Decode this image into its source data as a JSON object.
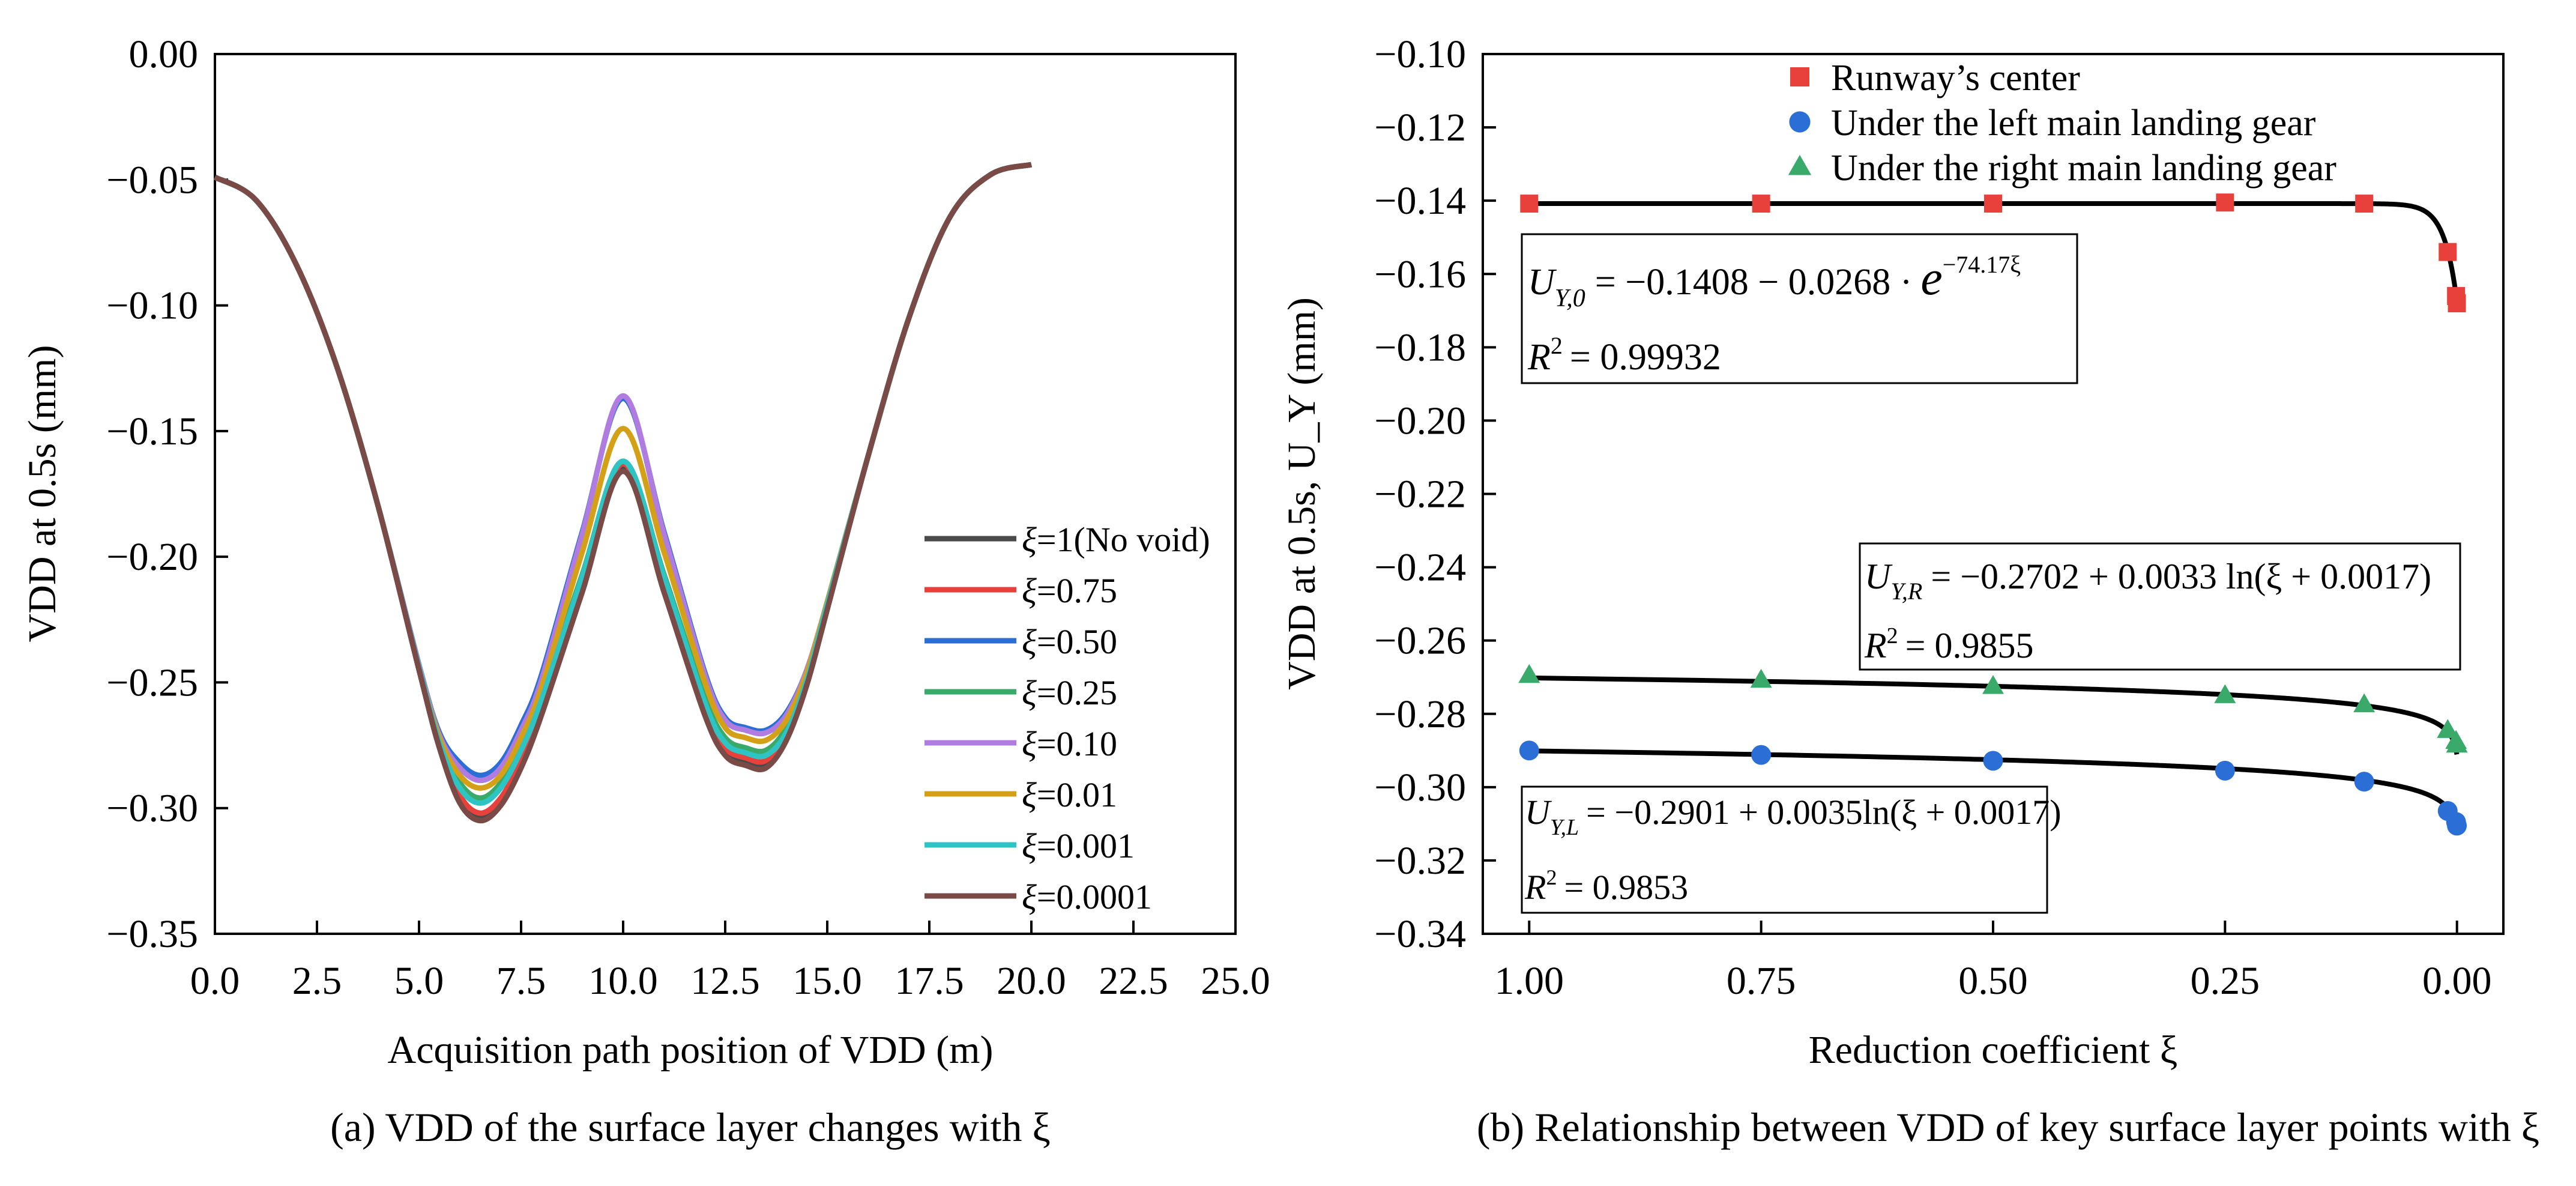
{
  "chart_data": [
    {
      "type": "line",
      "title": "",
      "caption": "(a) VDD of the surface layer changes with ξ",
      "xlabel": "Acquisition path position of VDD (m)",
      "ylabel": "VDD at 0.5s (mm)",
      "xlim": [
        0,
        25
      ],
      "ylim": [
        -0.35,
        0
      ],
      "xticks": [
        0,
        2.5,
        5,
        7.5,
        10,
        12.5,
        15,
        17.5,
        20,
        22.5,
        25
      ],
      "xtick_labels": [
        "0.0",
        "2.5",
        "5.0",
        "7.5",
        "10.0",
        "12.5",
        "15.0",
        "17.5",
        "20.0",
        "22.5",
        "25.0"
      ],
      "yticks": [
        0,
        -0.05,
        -0.1,
        -0.15,
        -0.2,
        -0.25,
        -0.3,
        -0.35
      ],
      "ytick_labels": [
        "0.00",
        "−0.05",
        "−0.10",
        "−0.15",
        "−0.20",
        "−0.25",
        "−0.30",
        "−0.35"
      ],
      "grid": false,
      "legend_position": "lower-right",
      "x": [
        0,
        1,
        2,
        3,
        4,
        5,
        5.5,
        6,
        6.5,
        7,
        7.5,
        8,
        9,
        10,
        11,
        12,
        12.5,
        13,
        13.5,
        14,
        14.5,
        15,
        16,
        17,
        18,
        19,
        20
      ],
      "series": [
        {
          "name": "ξ=1(No void)",
          "color": "#4a4a4a",
          "values": [
            -0.049,
            -0.058,
            -0.084,
            -0.125,
            -0.18,
            -0.245,
            -0.276,
            -0.297,
            -0.304,
            -0.298,
            -0.283,
            -0.262,
            -0.213,
            -0.165,
            -0.213,
            -0.262,
            -0.278,
            -0.282,
            -0.283,
            -0.272,
            -0.25,
            -0.22,
            -0.16,
            -0.105,
            -0.065,
            -0.048,
            -0.044
          ]
        },
        {
          "name": "ξ=0.75",
          "color": "#e8413c",
          "values": [
            -0.049,
            -0.058,
            -0.084,
            -0.125,
            -0.18,
            -0.245,
            -0.275,
            -0.295,
            -0.302,
            -0.296,
            -0.281,
            -0.26,
            -0.211,
            -0.163,
            -0.211,
            -0.26,
            -0.276,
            -0.28,
            -0.281,
            -0.27,
            -0.25,
            -0.22,
            -0.16,
            -0.105,
            -0.065,
            -0.048,
            -0.044
          ]
        },
        {
          "name": "ξ=0.50",
          "color": "#2b6fd6",
          "values": [
            -0.049,
            -0.058,
            -0.084,
            -0.125,
            -0.18,
            -0.243,
            -0.27,
            -0.282,
            -0.287,
            -0.282,
            -0.267,
            -0.247,
            -0.19,
            -0.137,
            -0.19,
            -0.246,
            -0.264,
            -0.268,
            -0.269,
            -0.262,
            -0.245,
            -0.218,
            -0.16,
            -0.105,
            -0.065,
            -0.048,
            -0.044
          ]
        },
        {
          "name": "ξ=0.25",
          "color": "#3aaa6b",
          "values": [
            -0.049,
            -0.058,
            -0.084,
            -0.125,
            -0.18,
            -0.244,
            -0.273,
            -0.29,
            -0.296,
            -0.29,
            -0.275,
            -0.255,
            -0.207,
            -0.162,
            -0.207,
            -0.256,
            -0.272,
            -0.276,
            -0.277,
            -0.268,
            -0.248,
            -0.219,
            -0.16,
            -0.105,
            -0.065,
            -0.048,
            -0.044
          ]
        },
        {
          "name": "ξ=0.10",
          "color": "#b07ce0",
          "values": [
            -0.049,
            -0.058,
            -0.084,
            -0.125,
            -0.18,
            -0.243,
            -0.271,
            -0.284,
            -0.289,
            -0.284,
            -0.269,
            -0.249,
            -0.191,
            -0.136,
            -0.191,
            -0.247,
            -0.265,
            -0.269,
            -0.27,
            -0.263,
            -0.245,
            -0.218,
            -0.16,
            -0.105,
            -0.065,
            -0.048,
            -0.044
          ]
        },
        {
          "name": "ξ=0.01",
          "color": "#d4a017",
          "values": [
            -0.049,
            -0.058,
            -0.084,
            -0.125,
            -0.18,
            -0.244,
            -0.272,
            -0.287,
            -0.292,
            -0.287,
            -0.272,
            -0.252,
            -0.198,
            -0.149,
            -0.198,
            -0.25,
            -0.268,
            -0.272,
            -0.273,
            -0.265,
            -0.246,
            -0.218,
            -0.16,
            -0.105,
            -0.065,
            -0.048,
            -0.044
          ]
        },
        {
          "name": "ξ=0.001",
          "color": "#2ec4c4",
          "values": [
            -0.049,
            -0.058,
            -0.084,
            -0.125,
            -0.18,
            -0.244,
            -0.274,
            -0.292,
            -0.298,
            -0.292,
            -0.277,
            -0.257,
            -0.208,
            -0.162,
            -0.208,
            -0.258,
            -0.274,
            -0.278,
            -0.279,
            -0.27,
            -0.249,
            -0.219,
            -0.16,
            -0.105,
            -0.065,
            -0.048,
            -0.044
          ]
        },
        {
          "name": "ξ=0.0001",
          "color": "#7a4a46",
          "values": [
            -0.049,
            -0.058,
            -0.084,
            -0.125,
            -0.18,
            -0.245,
            -0.276,
            -0.298,
            -0.305,
            -0.299,
            -0.284,
            -0.263,
            -0.214,
            -0.166,
            -0.214,
            -0.263,
            -0.279,
            -0.283,
            -0.284,
            -0.273,
            -0.251,
            -0.221,
            -0.16,
            -0.105,
            -0.065,
            -0.048,
            -0.044
          ]
        }
      ]
    },
    {
      "type": "scatter",
      "title": "",
      "caption": "(b) Relationship between VDD of key surface layer points with ξ",
      "xlabel": "Reduction coefficient ξ",
      "ylabel": "VDD at 0.5s, U_Y (mm)",
      "xlim": [
        1.05,
        -0.05
      ],
      "ylim": [
        -0.34,
        -0.1
      ],
      "xticks": [
        1,
        0.75,
        0.5,
        0.25,
        0
      ],
      "xtick_labels": [
        "1.00",
        "0.75",
        "0.50",
        "0.25",
        "0.00"
      ],
      "yticks": [
        -0.1,
        -0.12,
        -0.14,
        -0.16,
        -0.18,
        -0.2,
        -0.22,
        -0.24,
        -0.26,
        -0.28,
        -0.3,
        -0.32,
        -0.34
      ],
      "ytick_labels": [
        "−0.10",
        "−0.12",
        "−0.14",
        "−0.16",
        "−0.18",
        "−0.20",
        "−0.22",
        "−0.24",
        "−0.26",
        "−0.28",
        "−0.30",
        "−0.32",
        "−0.34"
      ],
      "grid": false,
      "legend_position": "top-right",
      "series": [
        {
          "name": "Runway’s center",
          "marker": "square",
          "color": "#e8413c",
          "x": [
            1,
            0.75,
            0.5,
            0.25,
            0.1,
            0.01,
            0.001,
            0.0001
          ],
          "y": [
            -0.1408,
            -0.1408,
            -0.1408,
            -0.1405,
            -0.1408,
            -0.154,
            -0.166,
            -0.168
          ]
        },
        {
          "name": "Under the left main landing gear",
          "marker": "circle",
          "color": "#2b6fd6",
          "x": [
            1,
            0.75,
            0.5,
            0.25,
            0.1,
            0.01,
            0.001,
            0.0001
          ],
          "y": [
            -0.29,
            -0.2912,
            -0.2928,
            -0.2955,
            -0.2985,
            -0.3065,
            -0.3095,
            -0.3105
          ]
        },
        {
          "name": "Under the right main landing gear",
          "marker": "triangle",
          "color": "#3aaa6b",
          "x": [
            1,
            0.75,
            0.5,
            0.25,
            0.1,
            0.01,
            0.001,
            0.0001
          ],
          "y": [
            -0.2695,
            -0.2708,
            -0.2725,
            -0.275,
            -0.2775,
            -0.2845,
            -0.2875,
            -0.2885
          ]
        }
      ],
      "fits": [
        {
          "target": "Runway’s center",
          "model": "exp",
          "a": -0.1408,
          "b": -0.0268,
          "c": -74.17,
          "r2_text": "= 0.99932",
          "lhs_sub": "Y,0",
          "rhs": "= −0.1408 − 0.0268 ·",
          "exp_sup": "−74.17ξ"
        },
        {
          "target": "Under the right main landing gear",
          "model": "log",
          "a": -0.2702,
          "b": 0.0033,
          "c": 0.0017,
          "r2_text": "= 0.9855",
          "lhs_sub": "Y,R",
          "rhs": "= −0.2702 + 0.0033 ln(ξ + 0.0017)"
        },
        {
          "target": "Under the left main landing gear",
          "model": "log",
          "a": -0.2901,
          "b": 0.0035,
          "c": 0.0017,
          "r2_text": "= 0.9853",
          "lhs_sub": "Y,L",
          "rhs": "= −0.2901 + 0.0035ln(ξ + 0.0017)"
        }
      ]
    }
  ],
  "symbols": {
    "U": "U",
    "R": "R",
    "two": "2",
    "e": "e"
  }
}
